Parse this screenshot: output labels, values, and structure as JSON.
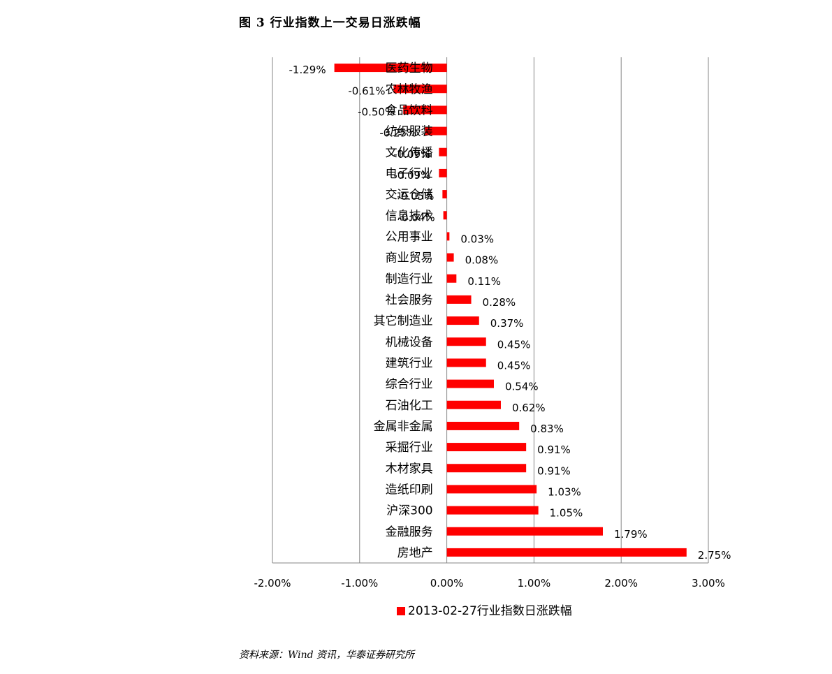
{
  "figure": {
    "title": "图 3   行业指数上一交易日涨跌幅",
    "source": "资料来源：Wind 资讯，华泰证券研究所"
  },
  "chart_data": {
    "type": "bar",
    "orientation": "horizontal",
    "categories": [
      "医药生物",
      "农林牧渔",
      "食品饮料",
      "纺织服装",
      "文化传播",
      "电子行业",
      "交运仓储",
      "信息技术",
      "公用事业",
      "商业贸易",
      "制造行业",
      "社会服务",
      "其它制造业",
      "机械设备",
      "建筑行业",
      "综合行业",
      "石油化工",
      "金属非金属",
      "采掘行业",
      "木材家具",
      "造纸印刷",
      "沪深300",
      "金融服务",
      "房地产"
    ],
    "series": [
      {
        "name": "2013-02-27行业指数日涨跌幅",
        "values": [
          -1.29,
          -0.61,
          -0.5,
          -0.25,
          -0.09,
          -0.09,
          -0.05,
          -0.04,
          0.03,
          0.08,
          0.11,
          0.28,
          0.37,
          0.45,
          0.45,
          0.54,
          0.62,
          0.83,
          0.91,
          0.91,
          1.03,
          1.05,
          1.79,
          2.75
        ],
        "labels": [
          "-1.29%",
          "-0.61%",
          "-0.50%",
          "-0.25%",
          "-0.09%",
          "-0.09%",
          "-0.05%",
          "-0.04%",
          "0.03%",
          "0.08%",
          "0.11%",
          "0.28%",
          "0.37%",
          "0.45%",
          "0.45%",
          "0.54%",
          "0.62%",
          "0.83%",
          "0.91%",
          "0.91%",
          "1.03%",
          "1.05%",
          "1.79%",
          "2.75%"
        ],
        "color": "#ff0000"
      }
    ],
    "xlim": [
      -2.0,
      3.0
    ],
    "xticks": [
      -2,
      -1,
      0,
      1,
      2,
      3
    ],
    "xtick_labels": [
      "-2.00%",
      "-1.00%",
      "0.00%",
      "1.00%",
      "2.00%",
      "3.00%"
    ],
    "grid": "vertical major",
    "legend": "bottom-center",
    "gridline_color": "#868686"
  }
}
